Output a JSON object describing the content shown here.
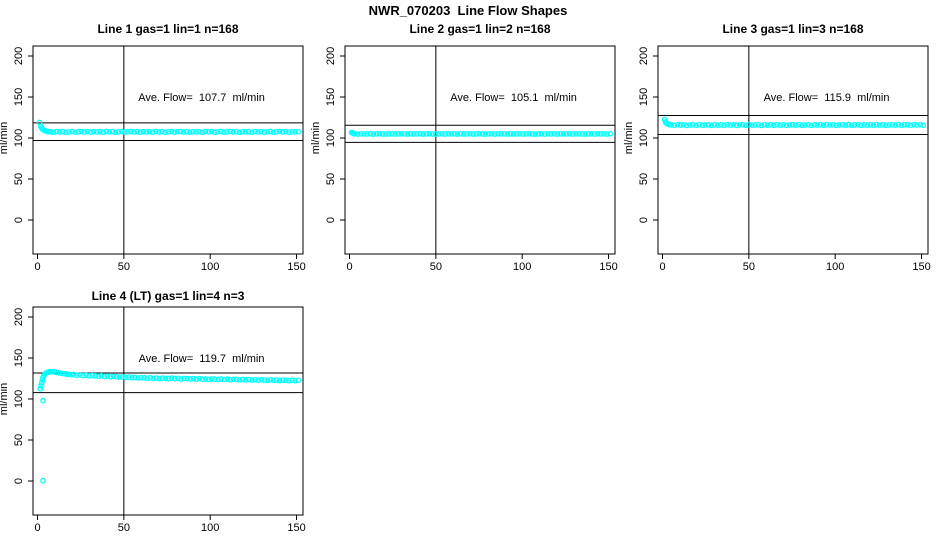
{
  "figure": {
    "title": "NWR_070203  Line Flow Shapes",
    "background_color": "#ffffff",
    "point_color": "#00ffff",
    "line_color": "#000000",
    "ylabel": "ml/min"
  },
  "chart_data": [
    {
      "type": "scatter",
      "title": "Line 1 gas=1 lin=1 n=168",
      "ylabel": "ml/min",
      "annotation": "Ave. Flow=  107.7  ml/min",
      "ave_flow_ml_min": 107.7,
      "n_points": 168,
      "xlim": [
        0,
        150
      ],
      "ylim": [
        0,
        200
      ],
      "x_ticks": [
        0,
        50,
        100,
        150
      ],
      "y_ticks": [
        0,
        50,
        100,
        150,
        200
      ],
      "ref_line_x": 50,
      "ref_lines_y": [
        118.5,
        96.9
      ],
      "head_points": [
        [
          1.2,
          119.0
        ],
        [
          1.8,
          114.5
        ],
        [
          2.4,
          112.0
        ],
        [
          3.1,
          110.4
        ],
        [
          3.9,
          109.2
        ],
        [
          4.8,
          108.5
        ],
        [
          5.8,
          108.0
        ],
        [
          6.8,
          107.7
        ]
      ],
      "bands": [
        {
          "x_start": 7.5,
          "x_end": 151,
          "n": 81,
          "y_start": 107.5,
          "y_end": 107.5,
          "noise": [
            0.2,
            -0.4,
            0.5,
            -0.1,
            0.3,
            -0.5,
            0.0,
            0.4,
            -0.3,
            0.1,
            0.5,
            -0.2,
            0.3,
            -0.4,
            0.2,
            0.0
          ]
        }
      ],
      "outlier_points": []
    },
    {
      "type": "scatter",
      "title": "Line 2 gas=1 lin=2 n=168",
      "ylabel": "ml/min",
      "annotation": "Ave. Flow=  105.1  ml/min",
      "ave_flow_ml_min": 105.1,
      "n_points": 168,
      "xlim": [
        0,
        150
      ],
      "ylim": [
        0,
        200
      ],
      "x_ticks": [
        0,
        50,
        100,
        150
      ],
      "y_ticks": [
        0,
        50,
        100,
        150,
        200
      ],
      "ref_line_x": 50,
      "ref_lines_y": [
        115.6,
        94.6
      ],
      "head_points": [
        [
          1.2,
          106.8
        ],
        [
          1.8,
          106.0
        ],
        [
          2.4,
          105.5
        ]
      ],
      "bands": [
        {
          "x_start": 3,
          "x_end": 151,
          "n": 83,
          "y_start": 105.0,
          "y_end": 105.0,
          "noise": [
            0.1,
            -0.2,
            0.2,
            -0.1,
            0.0,
            0.2,
            -0.2,
            0.1,
            0.2,
            -0.1,
            -0.2,
            0.0,
            0.1,
            -0.2,
            0.2,
            0.1
          ]
        }
      ],
      "outlier_points": []
    },
    {
      "type": "scatter",
      "title": "Line 3 gas=1 lin=3 n=168",
      "ylabel": "ml/min",
      "annotation": "Ave. Flow=  115.9  ml/min",
      "ave_flow_ml_min": 115.9,
      "n_points": 168,
      "xlim": [
        0,
        150
      ],
      "ylim": [
        0,
        200
      ],
      "x_ticks": [
        0,
        50,
        100,
        150
      ],
      "y_ticks": [
        0,
        50,
        100,
        150,
        200
      ],
      "ref_line_x": 50,
      "ref_lines_y": [
        127.5,
        104.3
      ],
      "head_points": [
        [
          1.2,
          122.5
        ],
        [
          1.8,
          119.5
        ],
        [
          2.4,
          117.8
        ],
        [
          3.2,
          116.8
        ],
        [
          4.1,
          116.2
        ]
      ],
      "bands": [
        {
          "x_start": 5,
          "x_end": 151,
          "n": 82,
          "y_start": 115.8,
          "y_end": 115.9,
          "noise": [
            0.3,
            -0.3,
            0.4,
            -0.1,
            0.2,
            -0.4,
            0.0,
            0.3,
            -0.2,
            0.4,
            -0.3,
            0.1,
            0.2,
            -0.4,
            0.3,
            -0.1
          ]
        }
      ],
      "outlier_points": []
    },
    {
      "type": "scatter",
      "title": "Line 4 (LT) gas=1 lin=4 n=3",
      "ylabel": "ml/min",
      "annotation": "Ave. Flow=  119.7  ml/min",
      "ave_flow_ml_min": 119.7,
      "n_points": 3,
      "xlim": [
        0,
        150
      ],
      "ylim": [
        0,
        200
      ],
      "x_ticks": [
        0,
        50,
        100,
        150
      ],
      "y_ticks": [
        0,
        50,
        100,
        150,
        200
      ],
      "ref_line_x": 50,
      "ref_lines_y": [
        131.7,
        107.7
      ],
      "head_points": [
        [
          1.6,
          112.5
        ],
        [
          2.0,
          116.0
        ],
        [
          2.4,
          119.5
        ],
        [
          2.8,
          123.0
        ],
        [
          3.2,
          126.0
        ],
        [
          3.7,
          128.5
        ],
        [
          4.3,
          130.3
        ],
        [
          5.0,
          131.6
        ],
        [
          5.8,
          132.5
        ],
        [
          6.6,
          133.1
        ],
        [
          7.5,
          133.4
        ],
        [
          8.5,
          133.3
        ],
        [
          9.6,
          133.0
        ],
        [
          10.8,
          132.5
        ],
        [
          12.0,
          132.0
        ],
        [
          13.5,
          131.5
        ],
        [
          15.0,
          131.0
        ],
        [
          16.5,
          130.5
        ],
        [
          18.0,
          130.1
        ],
        [
          19.5,
          129.8
        ]
      ],
      "bands": [
        {
          "x_start": 21,
          "x_end": 60,
          "n": 23,
          "y_start": 129.4,
          "y_end": 125.8,
          "noise": [
            0.3,
            -0.2,
            0.4,
            -0.3,
            0.1,
            -0.4,
            0.2,
            0.0,
            -0.3,
            0.4,
            -0.1,
            0.3,
            -0.4,
            0.2,
            0.1,
            -0.2
          ]
        },
        {
          "x_start": 61.7,
          "x_end": 151,
          "n": 51,
          "y_start": 125.6,
          "y_end": 122.4,
          "noise": [
            0.3,
            -0.2,
            0.4,
            -0.3,
            0.1,
            -0.4,
            0.2,
            0.0,
            -0.3,
            0.4,
            -0.1,
            0.3,
            -0.4,
            0.2,
            0.1,
            -0.2
          ]
        }
      ],
      "outlier_points": [
        [
          3.2,
          98
        ],
        [
          3.2,
          0.5
        ]
      ]
    }
  ]
}
